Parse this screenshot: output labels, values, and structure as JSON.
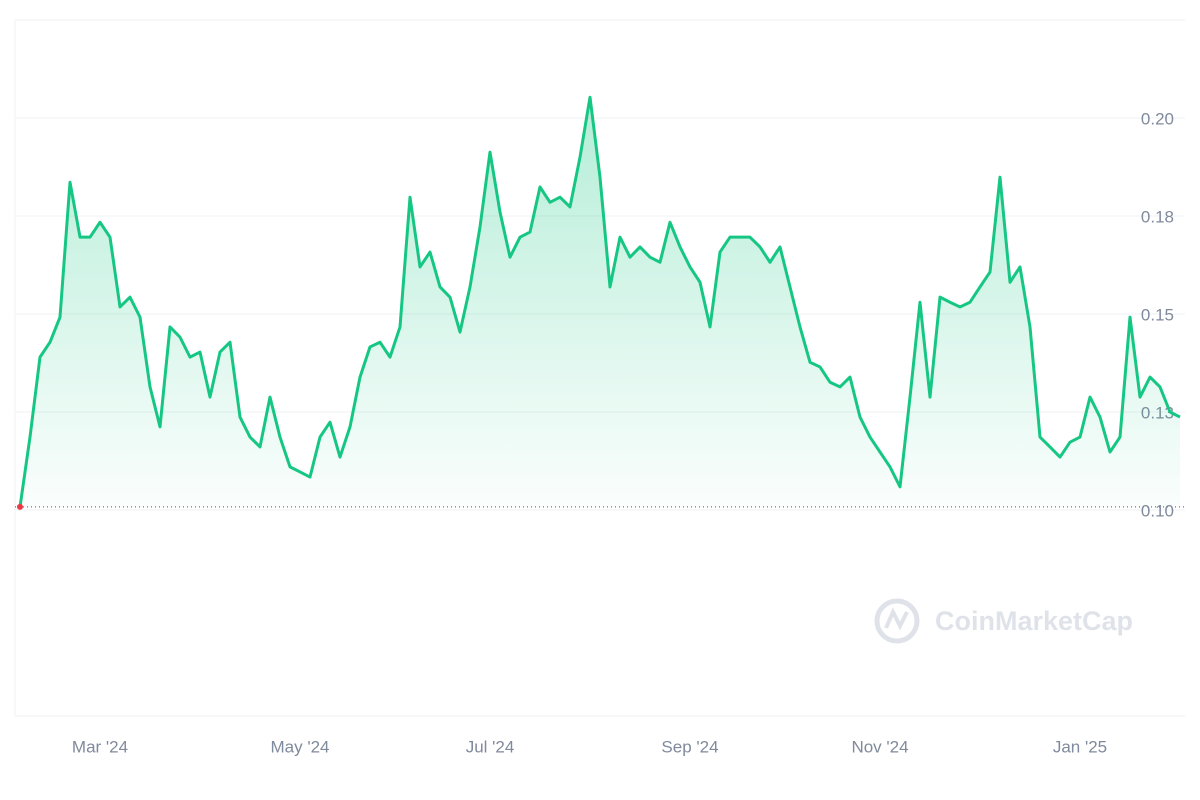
{
  "chart_data": {
    "type": "line",
    "watermark": "CoinMarketCap",
    "categories": [
      null,
      null,
      null,
      null,
      null,
      null,
      null,
      null,
      "Mar '24",
      null,
      null,
      null,
      null,
      null,
      null,
      null,
      null,
      null,
      null,
      null,
      null,
      null,
      null,
      null,
      null,
      null,
      null,
      null,
      "May '24",
      null,
      null,
      null,
      null,
      null,
      null,
      null,
      null,
      null,
      null,
      null,
      null,
      null,
      null,
      null,
      null,
      null,
      null,
      "Jul '24",
      null,
      null,
      null,
      null,
      null,
      null,
      null,
      null,
      null,
      null,
      null,
      null,
      null,
      null,
      null,
      null,
      null,
      null,
      null,
      "Sep '24",
      null,
      null,
      null,
      null,
      null,
      null,
      null,
      null,
      null,
      null,
      null,
      null,
      null,
      null,
      null,
      null,
      null,
      null,
      "Nov '24",
      null,
      null,
      null,
      null,
      null,
      null,
      null,
      null,
      null,
      null,
      null,
      null,
      null,
      null,
      null,
      null,
      null,
      null,
      null,
      "Jan '25",
      null,
      null,
      null,
      null,
      null,
      null,
      null,
      null,
      null,
      null
    ],
    "series": [
      {
        "color": "#16c784",
        "values": [
          0.1008,
          0.1186,
          0.139,
          0.1428,
          0.1492,
          0.1836,
          0.1696,
          0.1696,
          0.1734,
          0.1696,
          0.1518,
          0.1543,
          0.1492,
          0.1314,
          0.1212,
          0.1467,
          0.1441,
          0.139,
          0.1403,
          0.1288,
          0.1403,
          0.1428,
          0.1237,
          0.1186,
          0.1161,
          0.1288,
          0.1186,
          0.111,
          0.1097,
          0.1084,
          0.1186,
          0.1224,
          0.1135,
          0.1212,
          0.1339,
          0.1416,
          0.1428,
          0.139,
          0.1467,
          0.1798,
          0.162,
          0.1658,
          0.1569,
          0.1543,
          0.1454,
          0.1569,
          0.1722,
          0.1913,
          0.176,
          0.1645,
          0.1696,
          0.1709,
          0.1824,
          0.1785,
          0.1798,
          0.1773,
          0.19,
          0.2053,
          0.1849,
          0.1569,
          0.1696,
          0.1645,
          0.1671,
          0.1645,
          0.1632,
          0.1734,
          0.1671,
          0.162,
          0.1581,
          0.1467,
          0.1658,
          0.1696,
          0.1696,
          0.1696,
          0.1671,
          0.1632,
          0.1671,
          0.1569,
          0.1467,
          0.1377,
          0.1365,
          0.1326,
          0.1314,
          0.1339,
          0.1237,
          0.1186,
          0.1148,
          0.111,
          0.1059,
          0.1288,
          0.153,
          0.1288,
          0.1543,
          0.153,
          0.1518,
          0.153,
          0.1569,
          0.1607,
          0.1849,
          0.1581,
          0.162,
          0.1467,
          0.1186,
          0.1161,
          0.1135,
          0.1173,
          0.1186,
          0.1288,
          0.1237,
          0.1148,
          0.1186,
          0.1492,
          0.1288,
          0.1339,
          0.1314,
          0.125,
          0.1237
        ]
      }
    ],
    "ylim": [
      0.05,
      0.225
    ],
    "yticks": [
      {
        "value": 0.1,
        "label": "0.10"
      },
      {
        "value": 0.125,
        "label": "0.13"
      },
      {
        "value": 0.15,
        "label": "0.15"
      },
      {
        "value": 0.175,
        "label": "0.18"
      },
      {
        "value": 0.2,
        "label": "0.20"
      }
    ],
    "grid": true
  }
}
